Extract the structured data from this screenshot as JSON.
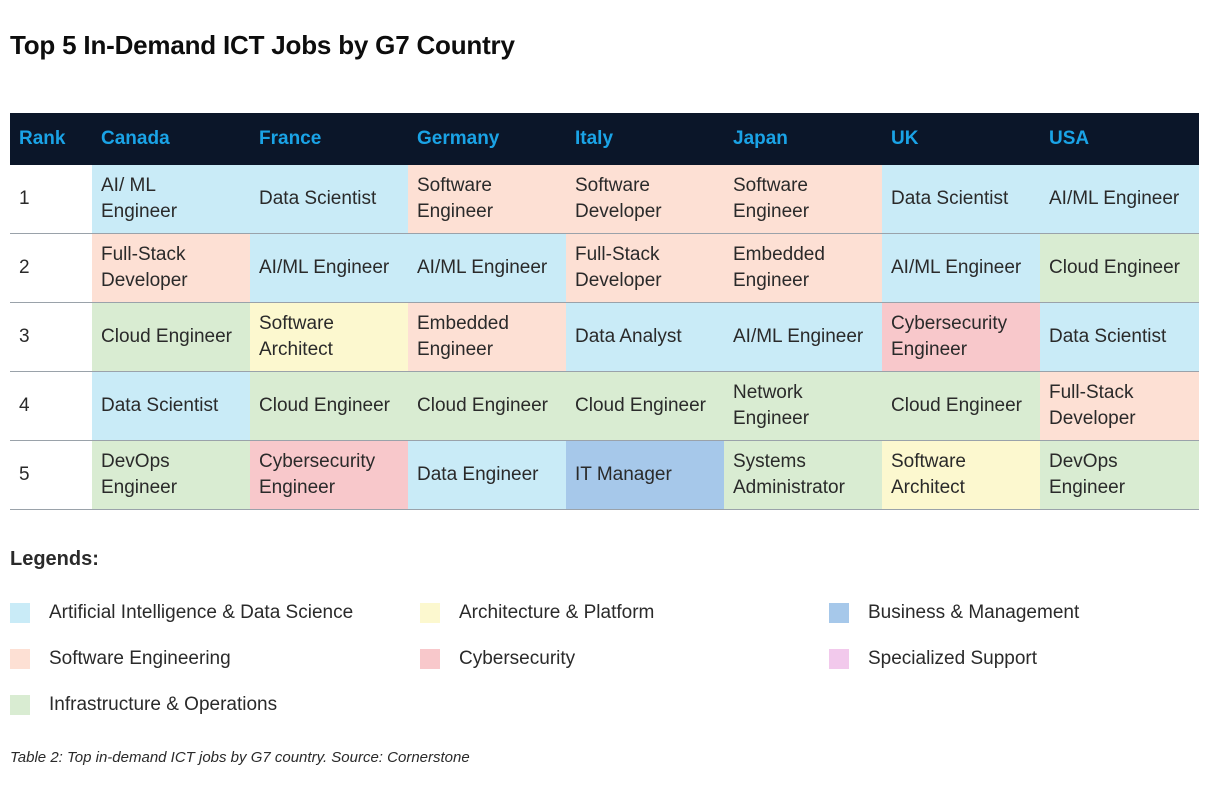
{
  "title": "Top 5 In-Demand ICT Jobs by G7 Country",
  "table": {
    "headers": [
      "Rank",
      "Canada",
      "France",
      "Germany",
      "Italy",
      "Japan",
      "UK",
      "USA"
    ],
    "rows": [
      {
        "rank": "1",
        "cells": [
          {
            "text": "AI/ ML\nEngineer",
            "cat": "ai"
          },
          {
            "text": "Data Scientist",
            "cat": "ai"
          },
          {
            "text": "Software\nEngineer",
            "cat": "sw"
          },
          {
            "text": "Software\nDeveloper",
            "cat": "sw"
          },
          {
            "text": "Software\nEngineer",
            "cat": "sw"
          },
          {
            "text": "Data Scientist",
            "cat": "ai"
          },
          {
            "text": "AI/ML Engineer",
            "cat": "ai"
          }
        ]
      },
      {
        "rank": "2",
        "cells": [
          {
            "text": "Full-Stack\nDeveloper",
            "cat": "sw"
          },
          {
            "text": "AI/ML Engineer",
            "cat": "ai"
          },
          {
            "text": "AI/ML Engineer",
            "cat": "ai"
          },
          {
            "text": "Full-Stack\nDeveloper",
            "cat": "sw"
          },
          {
            "text": "Embedded\nEngineer",
            "cat": "sw"
          },
          {
            "text": "AI/ML Engineer",
            "cat": "ai"
          },
          {
            "text": "Cloud Engineer",
            "cat": "infra"
          }
        ]
      },
      {
        "rank": "3",
        "cells": [
          {
            "text": "Cloud Engineer",
            "cat": "infra"
          },
          {
            "text": "Software\nArchitect",
            "cat": "arch"
          },
          {
            "text": "Embedded\nEngineer",
            "cat": "sw"
          },
          {
            "text": "Data Analyst",
            "cat": "ai"
          },
          {
            "text": "AI/ML Engineer",
            "cat": "ai"
          },
          {
            "text": "Cybersecurity\nEngineer",
            "cat": "cyber"
          },
          {
            "text": "Data Scientist",
            "cat": "ai"
          }
        ]
      },
      {
        "rank": "4",
        "cells": [
          {
            "text": "Data Scientist",
            "cat": "ai"
          },
          {
            "text": "Cloud Engineer",
            "cat": "infra"
          },
          {
            "text": "Cloud Engineer",
            "cat": "infra"
          },
          {
            "text": "Cloud Engineer",
            "cat": "infra"
          },
          {
            "text": "Network\nEngineer",
            "cat": "infra"
          },
          {
            "text": "Cloud Engineer",
            "cat": "infra"
          },
          {
            "text": "Full-Stack\nDeveloper",
            "cat": "sw"
          }
        ]
      },
      {
        "rank": "5",
        "cells": [
          {
            "text": "DevOps\nEngineer",
            "cat": "infra"
          },
          {
            "text": "Cybersecurity\nEngineer",
            "cat": "cyber"
          },
          {
            "text": "Data Engineer",
            "cat": "ai"
          },
          {
            "text": "IT Manager",
            "cat": "biz"
          },
          {
            "text": "Systems\nAdministrator",
            "cat": "infra"
          },
          {
            "text": "Software\nArchitect",
            "cat": "arch"
          },
          {
            "text": "DevOps\nEngineer",
            "cat": "infra"
          }
        ]
      }
    ]
  },
  "legend": {
    "title": "Legends:",
    "items": [
      {
        "key": "ai",
        "label": "Artificial Intelligence & Data Science",
        "color": "#c9ebf7"
      },
      {
        "key": "sw",
        "label": "Software Engineering",
        "color": "#fde0d4"
      },
      {
        "key": "infra",
        "label": "Infrastructure & Operations",
        "color": "#d9ecd2"
      },
      {
        "key": "arch",
        "label": "Architecture & Platform",
        "color": "#fcf8cf"
      },
      {
        "key": "cyber",
        "label": "Cybersecurity",
        "color": "#f8c8cb"
      },
      {
        "key": "biz",
        "label": "Business & Management",
        "color": "#a6c8ea"
      },
      {
        "key": "spec",
        "label": "Specialized Support",
        "color": "#f2c9ec"
      }
    ]
  },
  "caption": "Table 2: Top in-demand ICT jobs by G7 country. Source: Cornerstone",
  "colors": {
    "header_bg": "#0b1629",
    "header_text": "#1aa3e6"
  }
}
